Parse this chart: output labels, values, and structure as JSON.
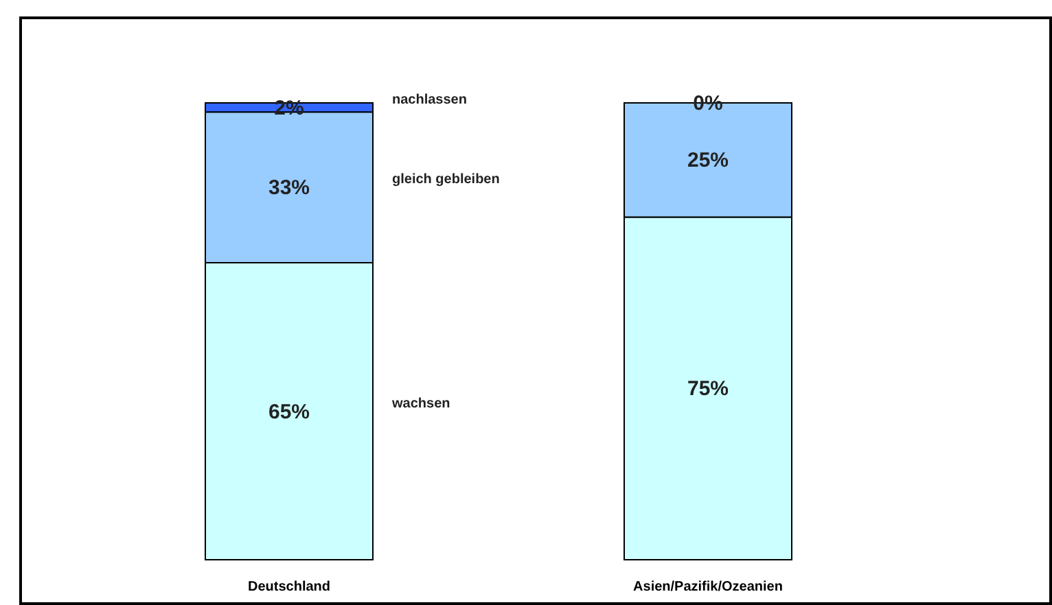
{
  "chart_data": {
    "type": "bar",
    "stacked": true,
    "categories": [
      "Deutschland",
      "Asien/Pazifik/Ozeanien"
    ],
    "legend": false,
    "series": [
      {
        "name": "wachsen",
        "color": "#ccffff",
        "values": [
          65,
          75
        ],
        "value_labels": [
          "65%",
          "75%"
        ]
      },
      {
        "name": "gleich gebleiben",
        "color": "#99ccff",
        "values": [
          33,
          25
        ],
        "value_labels": [
          "33%",
          "25%"
        ]
      },
      {
        "name": "nachlassen",
        "color": "#3366ff",
        "values": [
          2,
          0
        ],
        "value_labels": [
          "2%",
          "0%"
        ]
      }
    ]
  }
}
